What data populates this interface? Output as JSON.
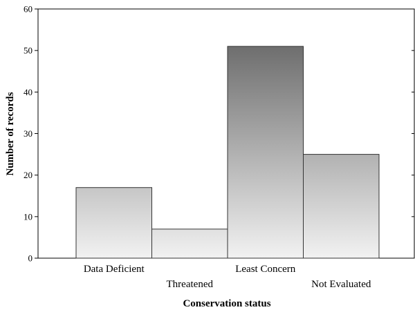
{
  "chart_data": {
    "type": "bar",
    "title": "",
    "xlabel": "Conservation status",
    "ylabel": "Number of records",
    "categories": [
      "Data Deficient",
      "Threatened",
      "Least Concern",
      "Not Evaluated"
    ],
    "values": [
      17,
      7,
      51,
      25
    ],
    "ylim": [
      0,
      60
    ],
    "yticks": [
      0,
      10,
      20,
      30,
      40,
      50,
      60
    ],
    "grid": false,
    "legend": "none",
    "bar_fill": "vertical gradient, dark gray at top to light gray at bottom",
    "colors": {
      "gradient_top": "#6e6e6e",
      "gradient_bottom": "#f2f2f2",
      "bar_stroke": "#333333"
    }
  }
}
